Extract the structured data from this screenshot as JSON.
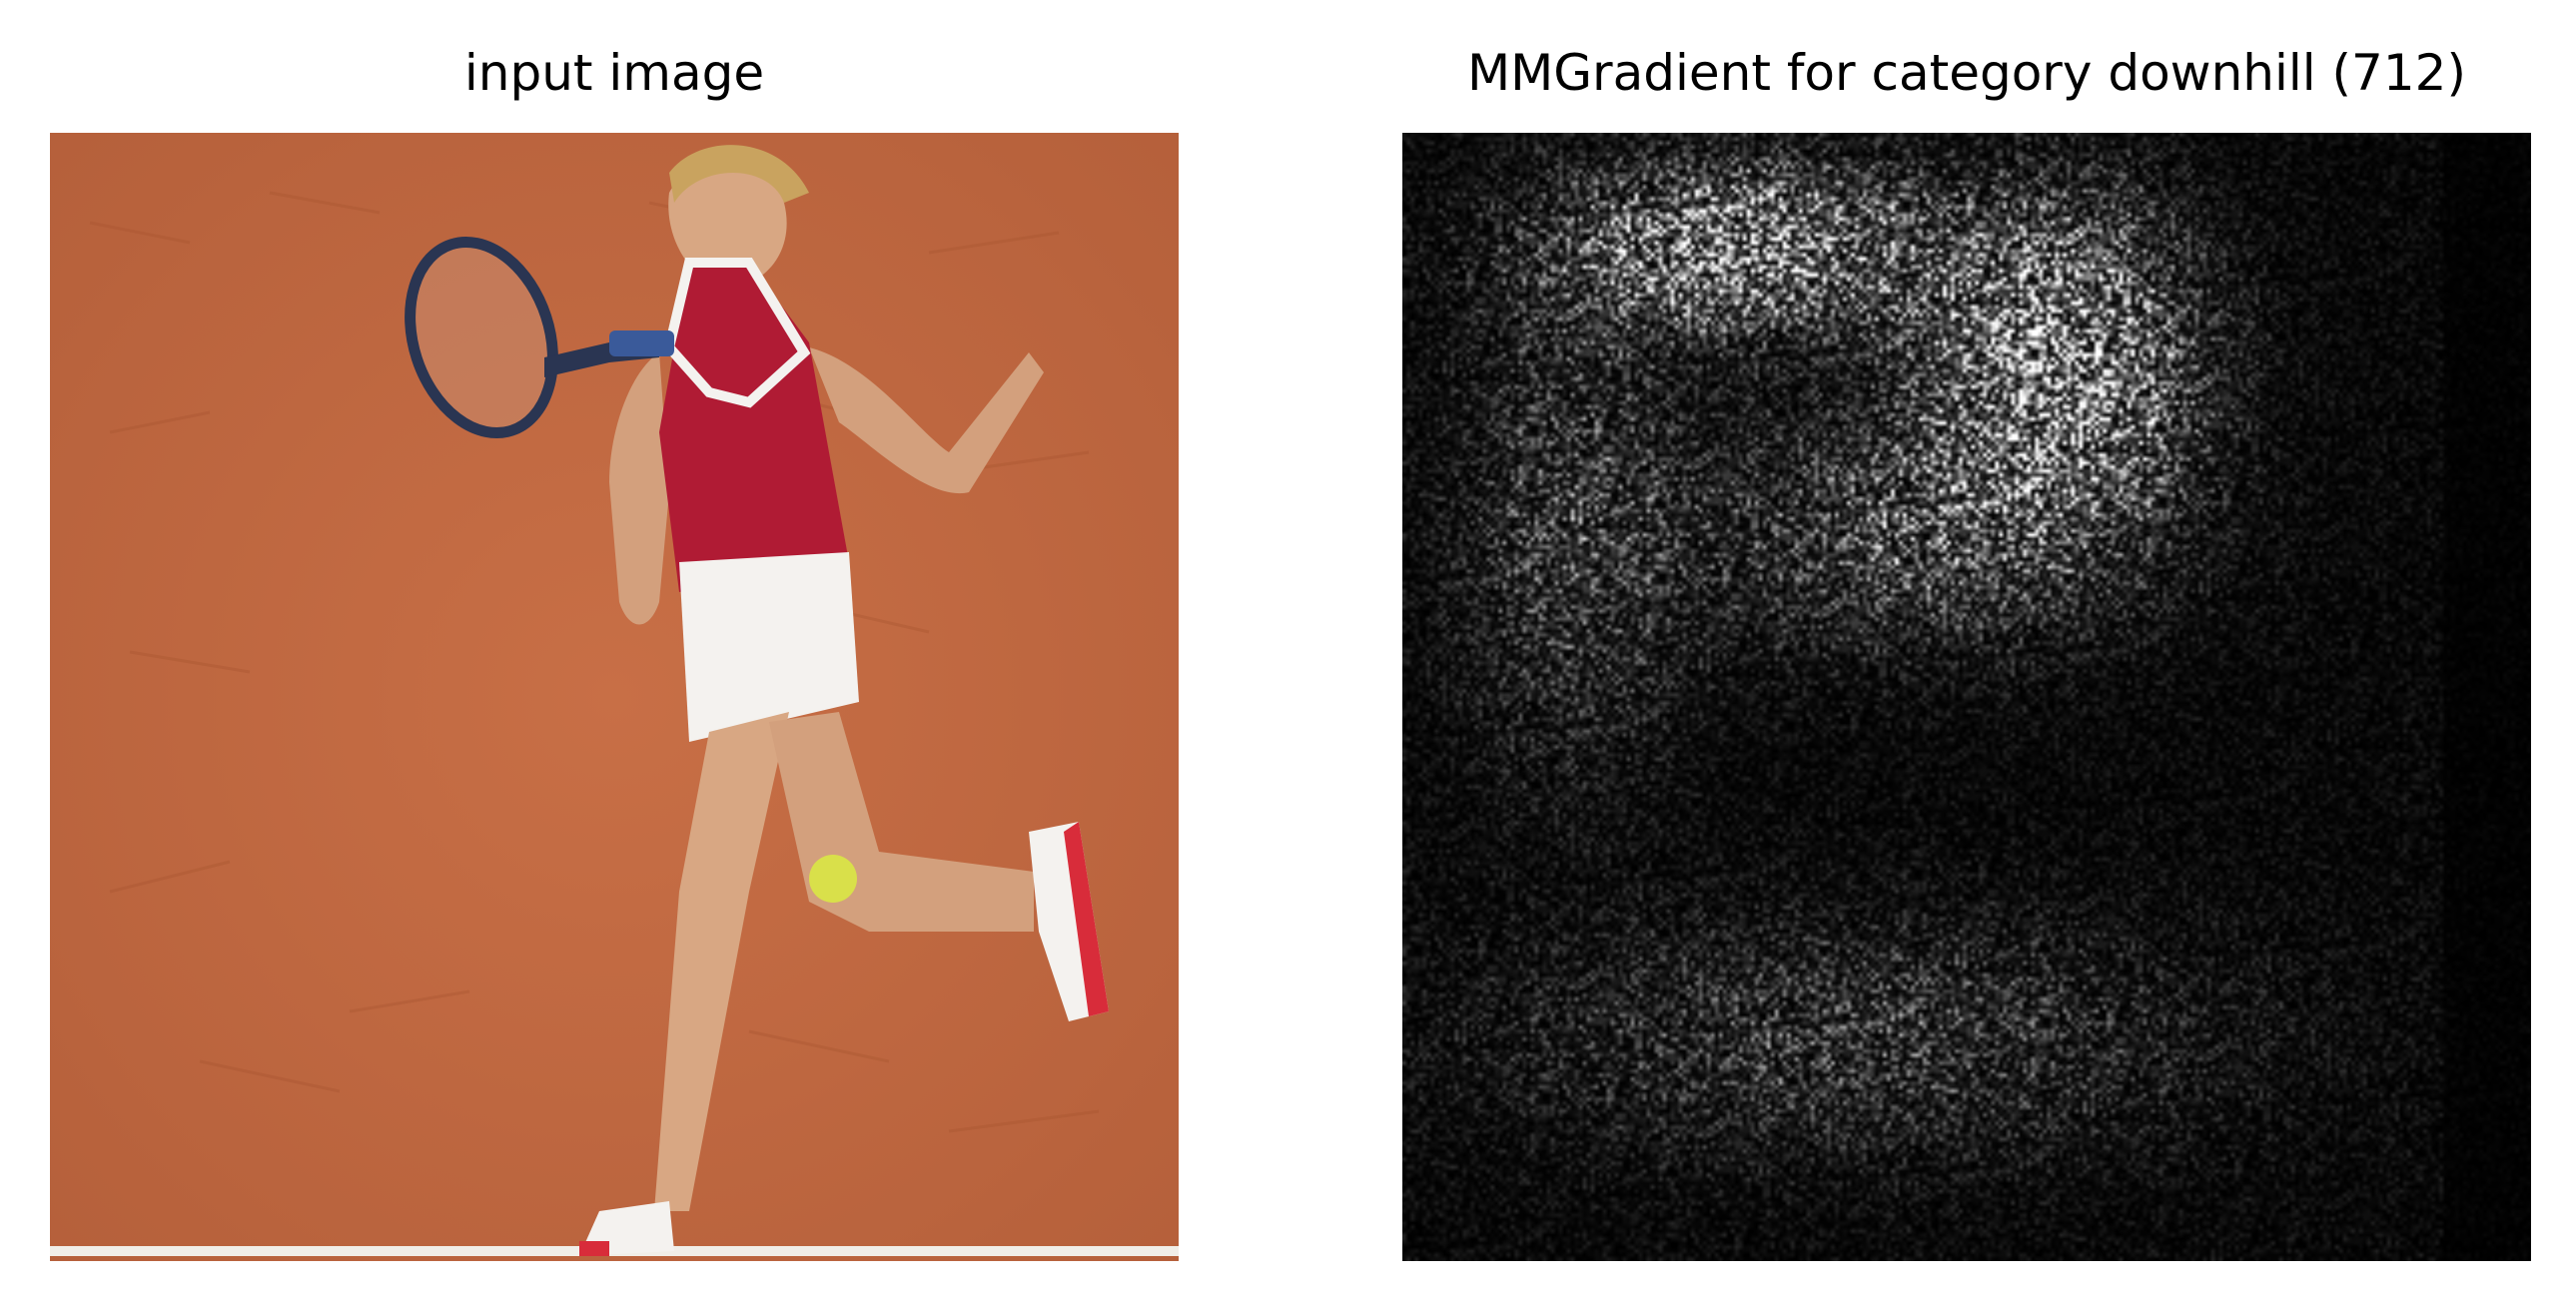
{
  "figure": {
    "left_panel": {
      "title": "input image",
      "content": "photo"
    },
    "right_panel": {
      "title": "MMGradient for category downhill (712)",
      "content": "grayscale saliency map"
    }
  },
  "colors": {
    "background": "#ffffff",
    "clay_court": "#c0673f",
    "shirt": "#b01b34",
    "skirt": "#f4f2ef",
    "skin": "#d8a783",
    "ball": "#d9e04a",
    "racket_frame": "#2a3552",
    "shoe_accent": "#d82c3a",
    "baseline": "#f1eee8",
    "saliency_bg": "#000000",
    "saliency_fg": "#ffffff"
  }
}
